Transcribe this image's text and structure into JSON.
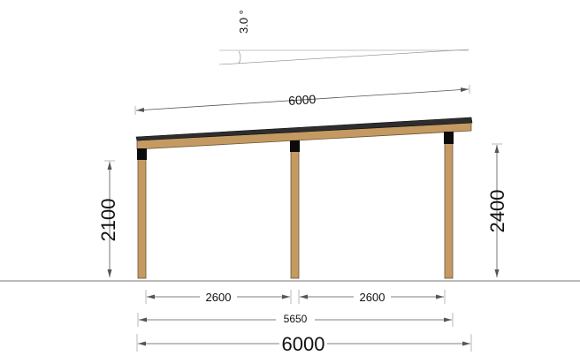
{
  "drawing": {
    "title": "",
    "roof_pitch_label": "3.0 °",
    "roof_length_label": "6000",
    "left_height_label": "2100",
    "right_height_label": "2400",
    "left_span_label": "2600",
    "right_span_label": "2600",
    "post_centers_label": "5650",
    "overall_width_label": "6000"
  },
  "colors": {
    "timber": "#c49a62",
    "timber_edge": "#6b5436",
    "bracket": "#0b0b0b",
    "roof": "#2e2e2e",
    "dimension_line": "#555555",
    "ground_line": "#777777"
  }
}
